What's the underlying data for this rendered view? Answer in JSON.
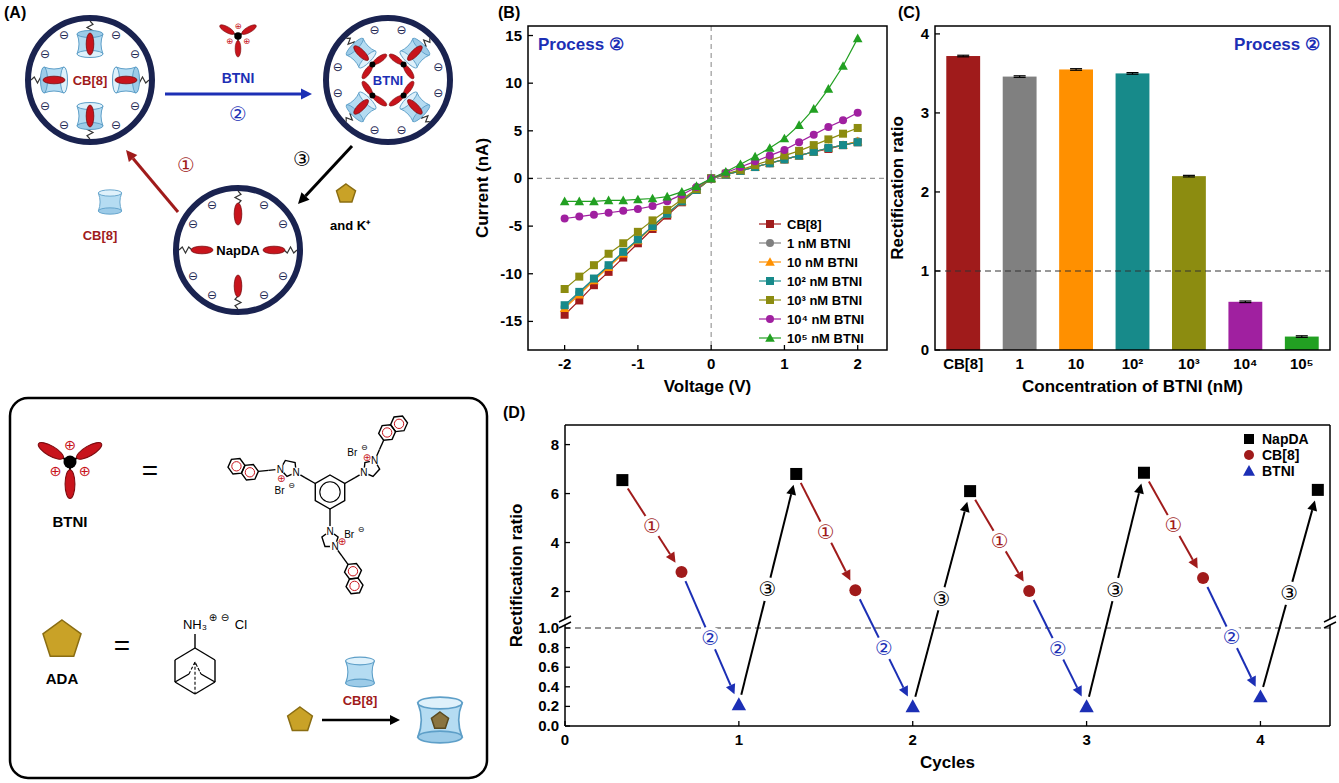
{
  "diagram": {
    "panel_label": "(A)",
    "states": [
      {
        "label": "CB[8]"
      },
      {
        "label": "BTNI"
      },
      {
        "label": "NapDA"
      }
    ],
    "surface_charge": "⊖",
    "steps": [
      {
        "number": "①",
        "label": "CB[8]",
        "color": "#a01b1b"
      },
      {
        "number": "②",
        "label": "BTNI",
        "color": "#1c2fb5"
      },
      {
        "number": "③",
        "label": "and K⁺",
        "color": "#000000"
      }
    ],
    "key": {
      "btni": {
        "label": "BTNI",
        "equals": "=",
        "cation_sign": "⊕",
        "counterion": "Br",
        "anion_sign": "⊖",
        "nitrogen": "N"
      },
      "ada": {
        "label": "ADA",
        "equals": "=",
        "ammonium": "NH₃",
        "cation_sign": "⊕",
        "anion_sign": "⊖",
        "counterion": "Cl",
        "host": "CB[8]"
      }
    }
  },
  "chart_data": [
    {
      "type": "line",
      "panel_label": "(B)",
      "annotation": "Process ②",
      "x_label": "Voltage (V)",
      "y_label": "Current (nA)",
      "x": [
        -2,
        -1.8,
        -1.6,
        -1.4,
        -1.2,
        -1,
        -0.8,
        -0.6,
        -0.4,
        -0.2,
        0,
        0.2,
        0.4,
        0.6,
        0.8,
        1,
        1.2,
        1.4,
        1.6,
        1.8,
        2
      ],
      "series": [
        {
          "name": "CB[8]",
          "color": "#a01b1b",
          "marker": "square",
          "values": [
            -14.3,
            -12.8,
            -11.2,
            -9.8,
            -8.3,
            -6.8,
            -5.3,
            -3.9,
            -2.5,
            -1.2,
            0,
            0.4,
            0.8,
            1.2,
            1.6,
            2.0,
            2.4,
            2.8,
            3.1,
            3.5,
            3.8
          ]
        },
        {
          "name": "1 nM BTNI",
          "color": "#808080",
          "marker": "circle",
          "values": [
            -13.5,
            -12.0,
            -10.6,
            -9.2,
            -7.8,
            -6.4,
            -5.0,
            -3.7,
            -2.4,
            -1.2,
            0,
            0.4,
            0.8,
            1.2,
            1.6,
            2.0,
            2.4,
            2.8,
            3.2,
            3.5,
            3.9
          ]
        },
        {
          "name": "10 nM BTNI",
          "color": "#ff9000",
          "marker": "triangle",
          "values": [
            -13.6,
            -12.2,
            -10.7,
            -9.3,
            -7.9,
            -6.5,
            -5.1,
            -3.7,
            -2.4,
            -1.2,
            0,
            0.4,
            0.8,
            1.2,
            1.6,
            2.0,
            2.4,
            2.8,
            3.2,
            3.5,
            3.9
          ]
        },
        {
          "name": "10² nM BTNI",
          "color": "#178a8a",
          "marker": "square",
          "values": [
            -13.3,
            -11.9,
            -10.5,
            -9.1,
            -7.7,
            -6.4,
            -5.0,
            -3.7,
            -2.4,
            -1.2,
            0,
            0.4,
            0.8,
            1.2,
            1.6,
            2.0,
            2.4,
            2.8,
            3.2,
            3.5,
            3.8
          ]
        },
        {
          "name": "10³ nM BTNI",
          "color": "#8c8c10",
          "marker": "square",
          "values": [
            -11.6,
            -10.3,
            -9.1,
            -7.9,
            -6.8,
            -5.6,
            -4.4,
            -3.3,
            -2.2,
            -1.1,
            0,
            0.5,
            0.9,
            1.4,
            1.9,
            2.4,
            2.9,
            3.5,
            4.1,
            4.7,
            5.3
          ]
        },
        {
          "name": "10⁴ nM BTNI",
          "color": "#a020a0",
          "marker": "circle",
          "values": [
            -4.2,
            -4.0,
            -3.8,
            -3.6,
            -3.4,
            -3.2,
            -2.9,
            -2.4,
            -1.7,
            -0.9,
            0,
            0.6,
            1.2,
            1.8,
            2.4,
            3.0,
            3.8,
            4.6,
            5.4,
            6.1,
            6.9
          ]
        },
        {
          "name": "10⁵ nM BTNI",
          "color": "#22a022",
          "marker": "triangle",
          "values": [
            -2.4,
            -2.4,
            -2.4,
            -2.3,
            -2.3,
            -2.2,
            -2.1,
            -1.9,
            -1.4,
            -0.8,
            0,
            0.7,
            1.5,
            2.3,
            3.2,
            4.2,
            5.6,
            7.3,
            9.4,
            11.8,
            14.7
          ]
        }
      ],
      "xlim": [
        -2.5,
        2.4
      ],
      "xticks": [
        -2,
        -1,
        0,
        1,
        2
      ],
      "ylim": [
        -18,
        16
      ],
      "yticks": [
        -15,
        -10,
        -5,
        0,
        5,
        10,
        15
      ],
      "x_reference": 0,
      "y_reference": 0,
      "legend": "lower-right"
    },
    {
      "type": "bar",
      "panel_label": "(C)",
      "annotation": "Process ②",
      "x_label": "Concentration of BTNI (nM)",
      "y_label": "Rectification ratio",
      "categories": [
        "CB[8]",
        "1",
        "10",
        "10²",
        "10³",
        "10⁴",
        "10⁵"
      ],
      "values": [
        3.72,
        3.46,
        3.55,
        3.5,
        2.2,
        0.61,
        0.17
      ],
      "errors": [
        0.01,
        0.01,
        0.01,
        0.01,
        0.01,
        0.01,
        0.01
      ],
      "colors": [
        "#a01b1b",
        "#808080",
        "#ff9000",
        "#178a8a",
        "#8c8c10",
        "#a020a0",
        "#22a022"
      ],
      "ylim": [
        0,
        4.1
      ],
      "yticks": [
        0,
        1,
        2,
        3,
        4
      ],
      "y_reference": 1
    },
    {
      "type": "scatter",
      "panel_label": "(D)",
      "x_label": "Cycles",
      "y_label": "Rectification ratio",
      "series": [
        {
          "name": "NapDA",
          "color": "#000000",
          "marker": "square",
          "x": [
            0.33,
            1.33,
            2.33,
            3.33,
            4.33
          ],
          "values": [
            6.55,
            6.8,
            6.1,
            6.85,
            6.15
          ]
        },
        {
          "name": "CB[8]",
          "color": "#a01b1b",
          "marker": "circle",
          "x": [
            0.67,
            1.67,
            2.67,
            3.67
          ],
          "values": [
            2.8,
            2.05,
            2.02,
            2.55
          ]
        },
        {
          "name": "BTNI",
          "color": "#1c2fb5",
          "marker": "triangle",
          "x": [
            1,
            2,
            3,
            4
          ],
          "values": [
            0.22,
            0.2,
            0.2,
            0.3
          ]
        }
      ],
      "transitions": [
        {
          "label": "①",
          "color": "#a01b1b"
        },
        {
          "label": "②",
          "color": "#1c2fb5"
        },
        {
          "label": "③",
          "color": "#000000"
        }
      ],
      "xlim": [
        0,
        4.4
      ],
      "xticks": [
        0,
        1,
        2,
        3,
        4
      ],
      "ylim": [
        0,
        8.8
      ],
      "y_break": 1,
      "yticks": [
        {
          "value": 0,
          "label": "0.0"
        },
        {
          "value": 0.2,
          "label": "0.2"
        },
        {
          "value": 0.4,
          "label": "0.4"
        },
        {
          "value": 0.6,
          "label": "0.6"
        },
        {
          "value": 0.8,
          "label": "0.8"
        },
        {
          "value": 1,
          "label": "1.0"
        },
        2,
        4,
        6,
        8
      ],
      "y_reference": 1,
      "legend": "upper-right"
    }
  ]
}
